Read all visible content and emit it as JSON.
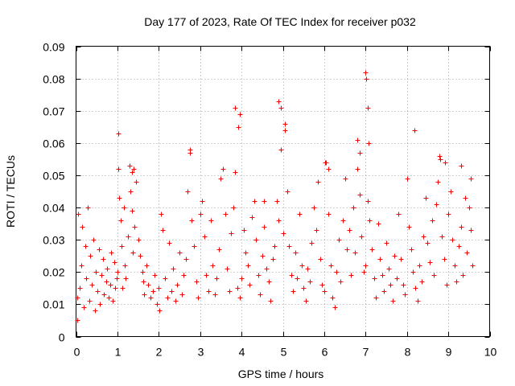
{
  "chart_data": {
    "type": "scatter",
    "title": "Day 177 of 2023, Rate Of TEC Index for receiver p032",
    "xlabel": "GPS time / hours",
    "ylabel": "ROTI / TECUs",
    "xlim": [
      0,
      10
    ],
    "ylim": [
      0,
      0.09
    ],
    "x_ticks": [
      0,
      1,
      2,
      3,
      4,
      5,
      6,
      7,
      8,
      9,
      10
    ],
    "x_tick_labels": [
      "0",
      "1",
      "2",
      "3",
      "4",
      "5",
      "6",
      "7",
      "8",
      "9",
      "10"
    ],
    "y_ticks": [
      0,
      0.01,
      0.02,
      0.03,
      0.04,
      0.05,
      0.06,
      0.07,
      0.08,
      0.09
    ],
    "y_tick_labels": [
      "0",
      "0.01",
      "0.02",
      "0.03",
      "0.04",
      "0.05",
      "0.06",
      "0.07",
      "0.08",
      "0.09"
    ],
    "grid": true,
    "marker": "+",
    "series_color": "#ff0000",
    "series": [
      {
        "name": "ROTI",
        "x": [
          0.02,
          0.05,
          0.08,
          0.12,
          0.15,
          0.18,
          0.22,
          0.25,
          0.28,
          0.32,
          0.35,
          0.38,
          0.42,
          0.45,
          0.48,
          0.52,
          0.55,
          0.58,
          0.62,
          0.65,
          0.68,
          0.72,
          0.75,
          0.78,
          0.82,
          0.85,
          0.88,
          0.92,
          0.95,
          0.98,
          1.0,
          1.02,
          1.05,
          1.08,
          1.1,
          1.12,
          1.15,
          1.18,
          1.2,
          1.25,
          1.3,
          1.32,
          1.35,
          1.38,
          1.4,
          1.42,
          1.45,
          1.5,
          1.55,
          1.6,
          1.62,
          1.65,
          1.7,
          1.75,
          1.8,
          1.85,
          1.9,
          1.95,
          2.0,
          2.05,
          2.1,
          2.15,
          2.2,
          2.25,
          2.3,
          2.35,
          2.4,
          2.45,
          2.5,
          2.55,
          2.6,
          2.65,
          2.7,
          2.75,
          2.8,
          2.85,
          2.9,
          2.95,
          3.0,
          3.05,
          3.1,
          3.15,
          3.2,
          3.25,
          3.3,
          3.35,
          3.4,
          3.45,
          3.5,
          3.55,
          3.6,
          3.65,
          3.7,
          3.75,
          3.8,
          3.85,
          3.9,
          3.95,
          4.0,
          4.05,
          4.1,
          4.15,
          4.2,
          4.25,
          4.3,
          4.35,
          4.4,
          4.45,
          4.5,
          4.55,
          4.6,
          4.65,
          4.7,
          4.75,
          4.8,
          4.85,
          4.9,
          4.95,
          5.0,
          5.05,
          5.1,
          5.15,
          5.2,
          5.25,
          5.3,
          5.35,
          5.4,
          5.45,
          5.5,
          5.55,
          5.6,
          5.65,
          5.7,
          5.75,
          5.8,
          5.85,
          5.9,
          5.95,
          6.0,
          6.05,
          6.1,
          6.15,
          6.2,
          6.25,
          6.3,
          6.35,
          6.4,
          6.45,
          6.5,
          6.55,
          6.6,
          6.65,
          6.7,
          6.75,
          6.8,
          6.85,
          6.9,
          6.95,
          7.0,
          7.05,
          7.1,
          7.15,
          7.2,
          7.25,
          7.3,
          7.35,
          7.4,
          7.45,
          7.5,
          7.55,
          7.6,
          7.65,
          7.7,
          7.75,
          7.8,
          7.85,
          7.9,
          7.95,
          8.0,
          8.05,
          8.1,
          8.15,
          8.2,
          8.25,
          8.3,
          8.35,
          8.4,
          8.45,
          8.5,
          8.55,
          8.6,
          8.65,
          8.7,
          8.75,
          8.8,
          8.85,
          8.9,
          8.95,
          9.0,
          9.05,
          9.1,
          9.15,
          9.2,
          9.25,
          9.3,
          9.35,
          9.4,
          9.45,
          9.5,
          9.55,
          9.58,
          1.02,
          1.35,
          2.75,
          3.85,
          3.95,
          3.92,
          4.9,
          4.95,
          5.05,
          6.8,
          6.85,
          7.0,
          7.02,
          7.05,
          7.08,
          8.18,
          8.92,
          8.78,
          9.55,
          6.02,
          6.1,
          9.3,
          4.55,
          0.02,
          2.02
        ],
        "y": [
          0.012,
          0.038,
          0.015,
          0.022,
          0.034,
          0.009,
          0.028,
          0.018,
          0.04,
          0.011,
          0.025,
          0.016,
          0.03,
          0.008,
          0.02,
          0.014,
          0.027,
          0.01,
          0.019,
          0.024,
          0.013,
          0.017,
          0.021,
          0.012,
          0.016,
          0.026,
          0.011,
          0.023,
          0.015,
          0.018,
          0.02,
          0.052,
          0.043,
          0.036,
          0.028,
          0.015,
          0.04,
          0.022,
          0.018,
          0.031,
          0.053,
          0.045,
          0.039,
          0.026,
          0.052,
          0.034,
          0.048,
          0.03,
          0.025,
          0.02,
          0.017,
          0.013,
          0.022,
          0.016,
          0.012,
          0.014,
          0.019,
          0.01,
          0.015,
          0.038,
          0.033,
          0.018,
          0.012,
          0.029,
          0.014,
          0.021,
          0.011,
          0.016,
          0.026,
          0.013,
          0.019,
          0.024,
          0.045,
          0.057,
          0.036,
          0.028,
          0.017,
          0.012,
          0.038,
          0.042,
          0.031,
          0.019,
          0.014,
          0.036,
          0.022,
          0.013,
          0.018,
          0.027,
          0.049,
          0.052,
          0.038,
          0.021,
          0.014,
          0.032,
          0.04,
          0.051,
          0.015,
          0.012,
          0.018,
          0.033,
          0.026,
          0.022,
          0.016,
          0.037,
          0.042,
          0.03,
          0.019,
          0.013,
          0.025,
          0.034,
          0.021,
          0.017,
          0.011,
          0.024,
          0.028,
          0.042,
          0.036,
          0.058,
          0.032,
          0.064,
          0.045,
          0.028,
          0.019,
          0.014,
          0.026,
          0.018,
          0.038,
          0.022,
          0.015,
          0.011,
          0.021,
          0.017,
          0.029,
          0.04,
          0.033,
          0.048,
          0.024,
          0.016,
          0.014,
          0.054,
          0.038,
          0.022,
          0.012,
          0.009,
          0.02,
          0.03,
          0.017,
          0.036,
          0.049,
          0.027,
          0.033,
          0.019,
          0.04,
          0.026,
          0.052,
          0.044,
          0.031,
          0.02,
          0.022,
          0.042,
          0.036,
          0.027,
          0.018,
          0.012,
          0.035,
          0.024,
          0.019,
          0.014,
          0.029,
          0.021,
          0.016,
          0.011,
          0.025,
          0.018,
          0.038,
          0.024,
          0.016,
          0.013,
          0.049,
          0.034,
          0.027,
          0.02,
          0.015,
          0.011,
          0.022,
          0.017,
          0.031,
          0.043,
          0.029,
          0.023,
          0.036,
          0.019,
          0.041,
          0.048,
          0.055,
          0.031,
          0.024,
          0.016,
          0.038,
          0.045,
          0.03,
          0.022,
          0.017,
          0.028,
          0.034,
          0.019,
          0.043,
          0.026,
          0.04,
          0.033,
          0.022,
          0.063,
          0.051,
          0.058,
          0.071,
          0.069,
          0.065,
          0.073,
          0.071,
          0.066,
          0.061,
          0.057,
          0.082,
          0.08,
          0.071,
          0.06,
          0.064,
          0.054,
          0.056,
          0.049,
          0.054,
          0.052,
          0.053,
          0.042,
          0.005,
          0.008
        ]
      }
    ]
  }
}
